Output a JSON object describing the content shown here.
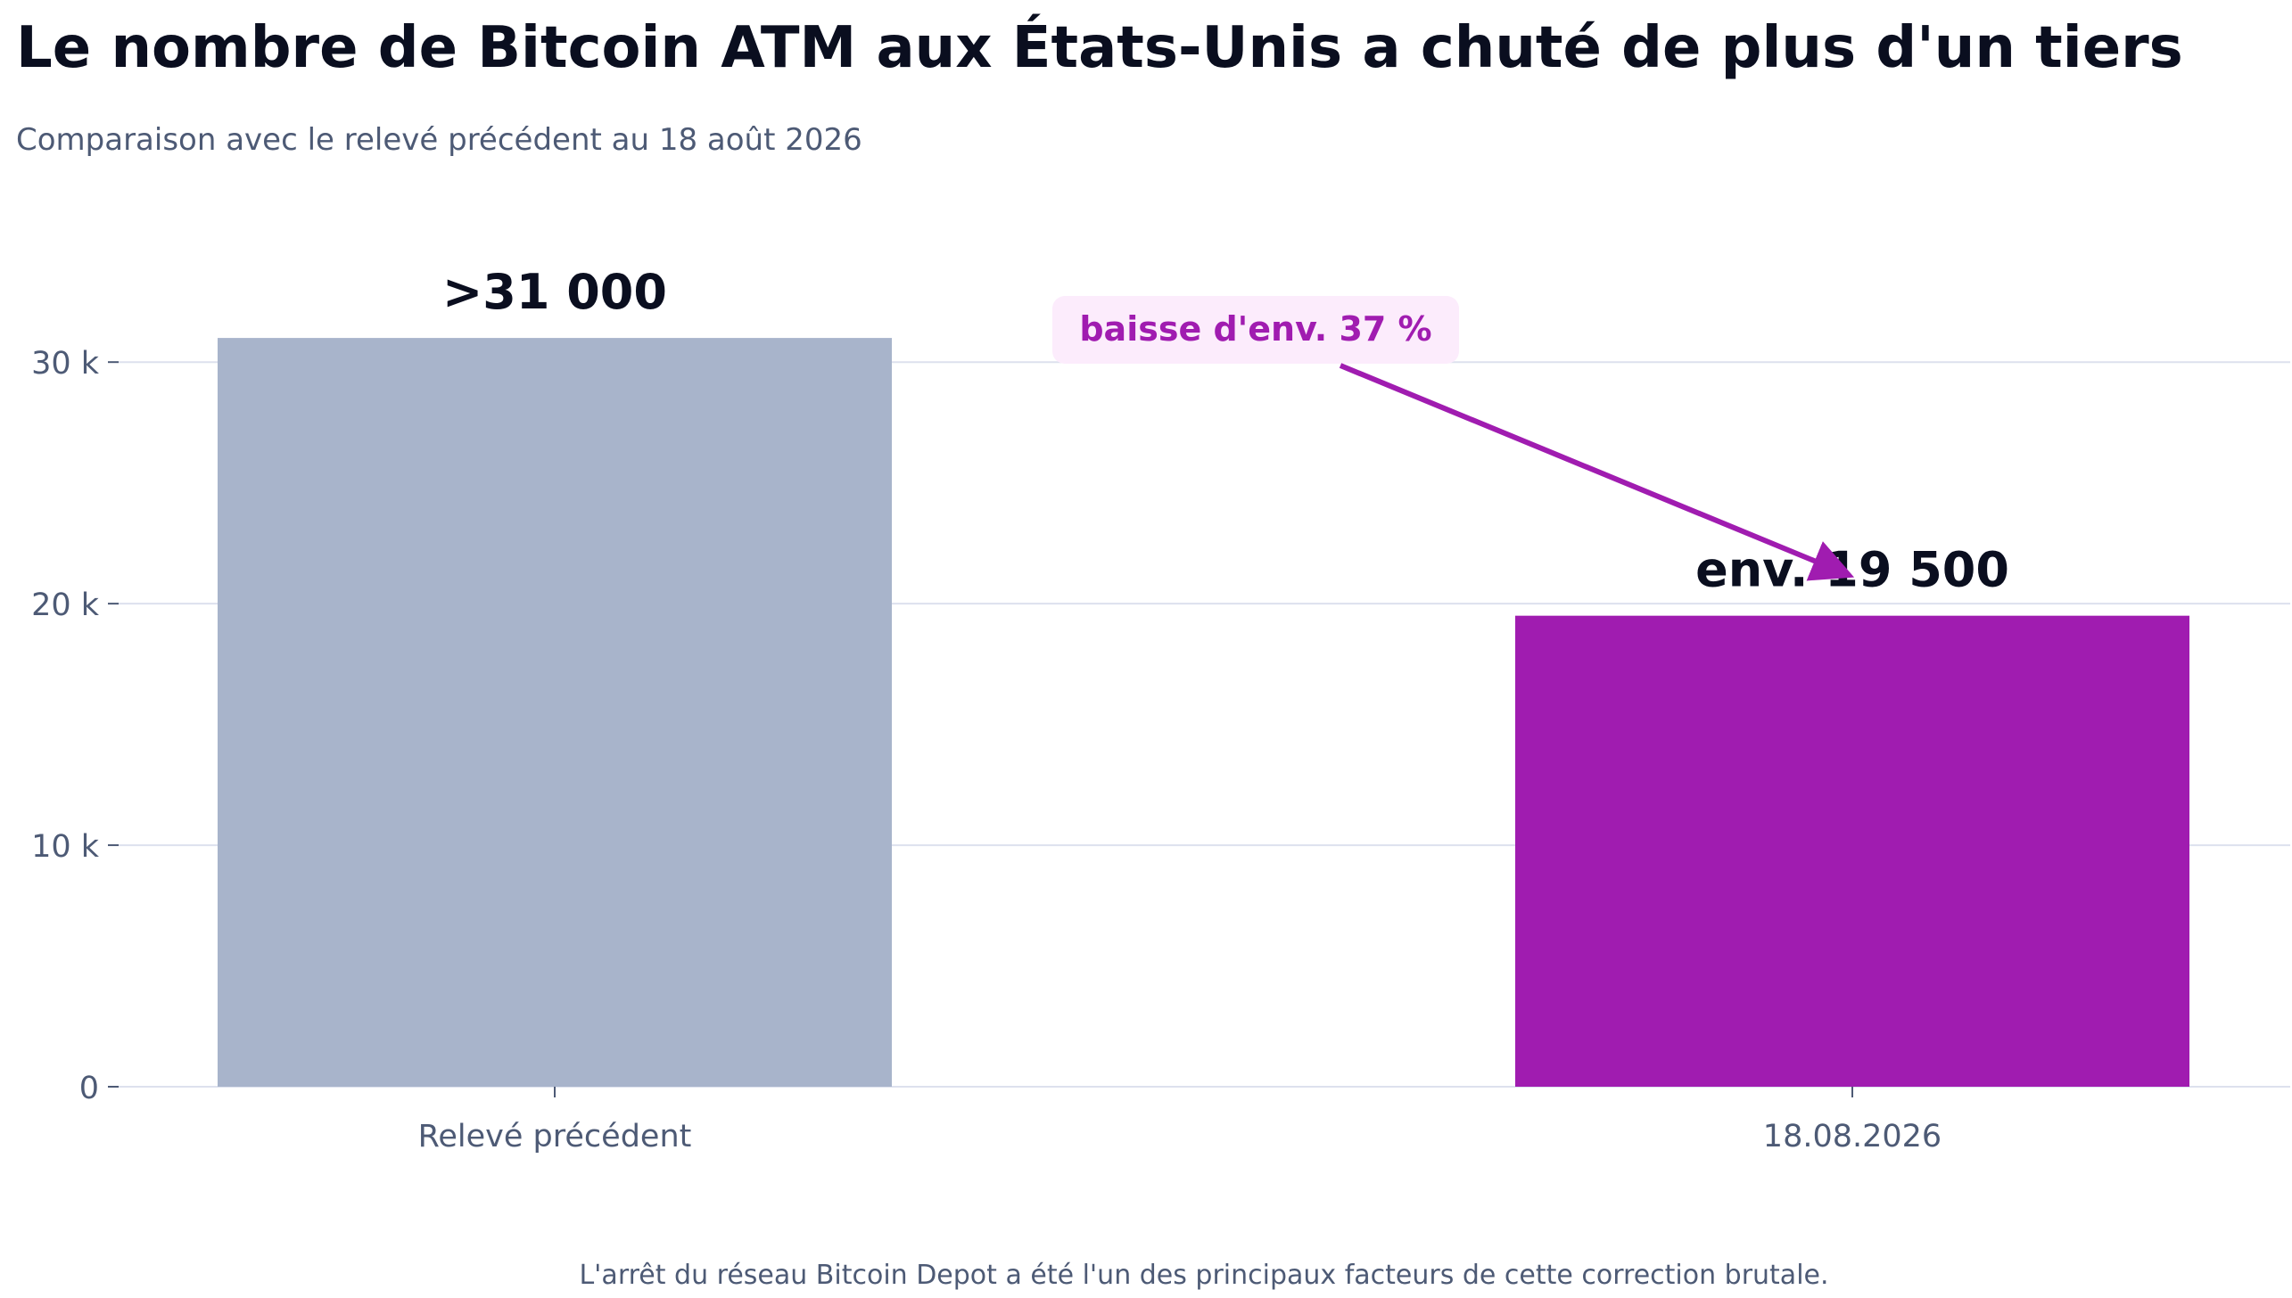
{
  "chart_data": {
    "type": "bar",
    "title": "Le nombre de Bitcoin ATM aux États-Unis a chuté de plus d'un tiers",
    "subtitle": "Comparaison avec le relevé précédent au 18 août 2026",
    "categories": [
      "Relevé précédent",
      "18.08.2026"
    ],
    "values": [
      31000,
      19500
    ],
    "value_labels": [
      ">31 000",
      "env. 19 500"
    ],
    "bar_colors": [
      "#a8b4cb",
      "#a01cb0"
    ],
    "ylim": [
      0,
      32000
    ],
    "yticks": [
      {
        "value": 0,
        "label": "0"
      },
      {
        "value": 10000,
        "label": "10 k"
      },
      {
        "value": 20000,
        "label": "20 k"
      },
      {
        "value": 30000,
        "label": "30 k"
      }
    ],
    "xlabel": "",
    "ylabel": "",
    "grid": "horizontal",
    "annotation": {
      "text": "baisse d'env. 37 %",
      "color": "#a01cb0",
      "background": "#fcecfc",
      "points_to": "18.08.2026"
    },
    "footnote": "L'arrêt du réseau Bitcoin Depot a été l'un des principaux facteurs de cette correction brutale."
  }
}
